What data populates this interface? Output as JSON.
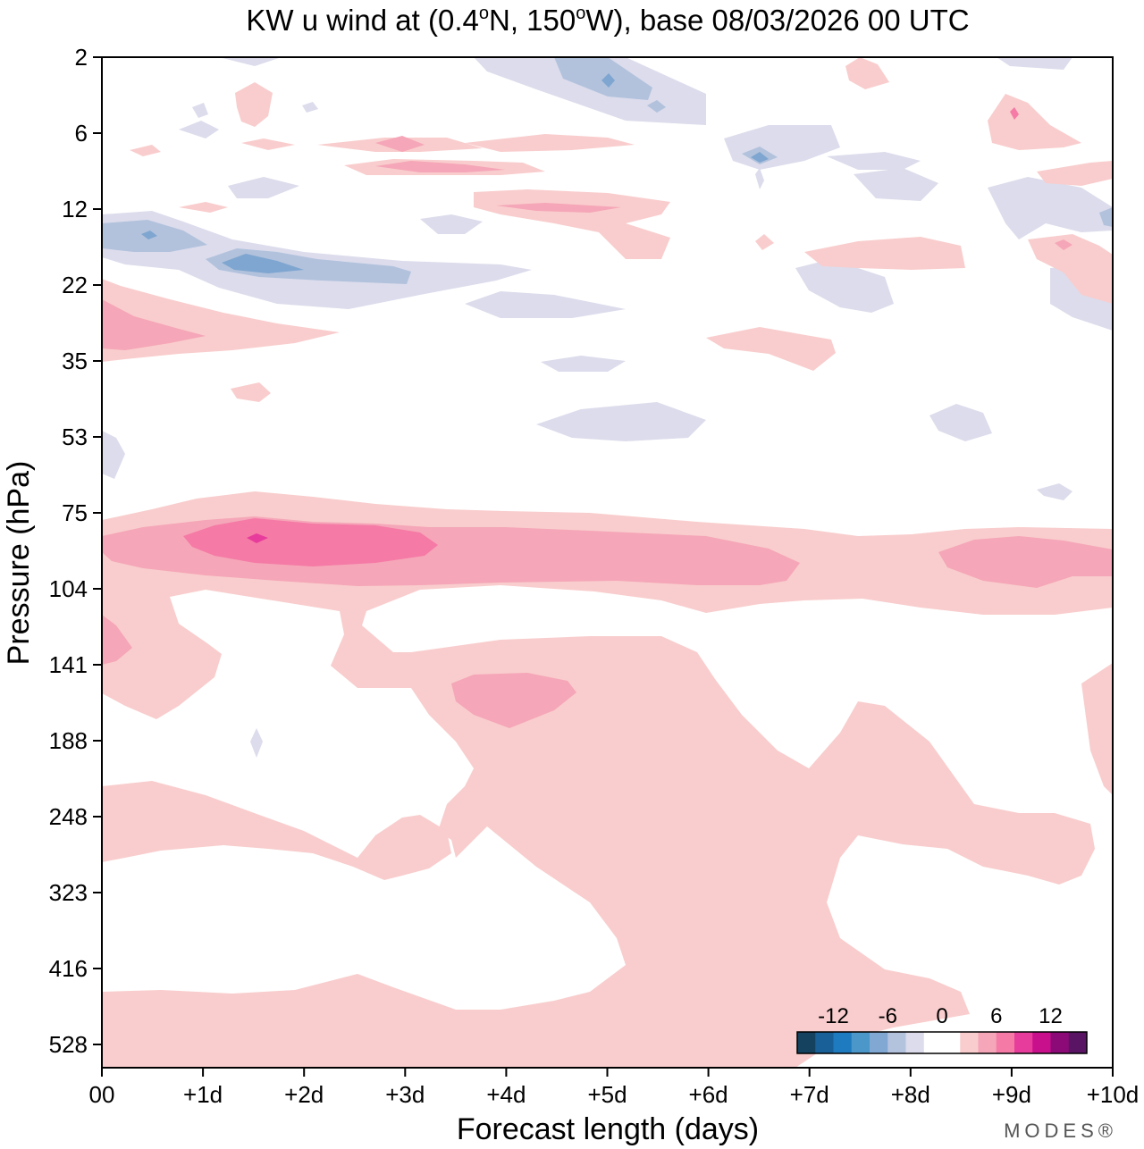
{
  "colors": {
    "n_light": "#dcdcec",
    "n_mid": "#b2c2dc",
    "n_dark": "#7fa6d0",
    "p_light": "#f9cdcd",
    "p_mid": "#f5a6b8",
    "p_dark": "#f57aa6",
    "p_deep": "#e83c9c",
    "p_max": "#c8108c"
  },
  "chart_data": {
    "type": "contour",
    "title": "KW u wind at (0.4°N, 150°W),  base 08/03/2026  00 UTC",
    "title_parts": {
      "prefix": "KW u wind at (0.4",
      "deg1": "o",
      "middle": "N, 150",
      "deg2": "o",
      "suffix": "W),  base 08/03/2026  00 UTC"
    },
    "xlabel": "Forecast length (days)",
    "ylabel": "Pressure (hPa)",
    "xlim": [
      0,
      10
    ],
    "x_ticks": [
      0,
      1,
      2,
      3,
      4,
      5,
      6,
      7,
      8,
      9,
      10
    ],
    "x_tick_labels": [
      "00",
      "+1d",
      "+2d",
      "+3d",
      "+4d",
      "+5d",
      "+6d",
      "+7d",
      "+8d",
      "+9d",
      "+10d"
    ],
    "y_ticks": [
      2,
      6,
      12,
      22,
      35,
      53,
      75,
      104,
      141,
      188,
      248,
      323,
      416,
      528
    ],
    "y_tick_labels": [
      "2",
      "6",
      "12",
      "22",
      "35",
      "53",
      "75",
      "104",
      "141",
      "188",
      "248",
      "323",
      "416",
      "528"
    ],
    "y_order": "index-spaced, top to bottom",
    "colorbar": {
      "tick_labels": [
        "-12",
        "-6",
        "0",
        "6",
        "12"
      ],
      "tick_values": [
        -12,
        -6,
        0,
        6,
        12
      ],
      "range": [
        -16,
        16
      ],
      "bin_colors": [
        "#14425f",
        "#1a6098",
        "#1f7bbf",
        "#4c97c9",
        "#80a8d3",
        "#b3c3de",
        "#dcdcec",
        "#ffffff",
        "#ffffff",
        "#f9cdcd",
        "#f5a6b8",
        "#f57aa6",
        "#e83c9c",
        "#c8108c",
        "#8c0a78",
        "#5a1464"
      ]
    },
    "fields": [
      {
        "name": "stratosphere positive bands",
        "level": 3
      },
      {
        "name": "easterly jet near 14-20 hPa, days 0-3",
        "level": -6
      },
      {
        "name": "westerly maximum near 85-90 hPa, day 1.5",
        "level": 11
      },
      {
        "name": "westerly region 141-248 hPa, day 4",
        "level": 5
      },
      {
        "name": "lower troposphere positive, days 3-9",
        "level": 3
      }
    ]
  },
  "logo": "MODES®"
}
